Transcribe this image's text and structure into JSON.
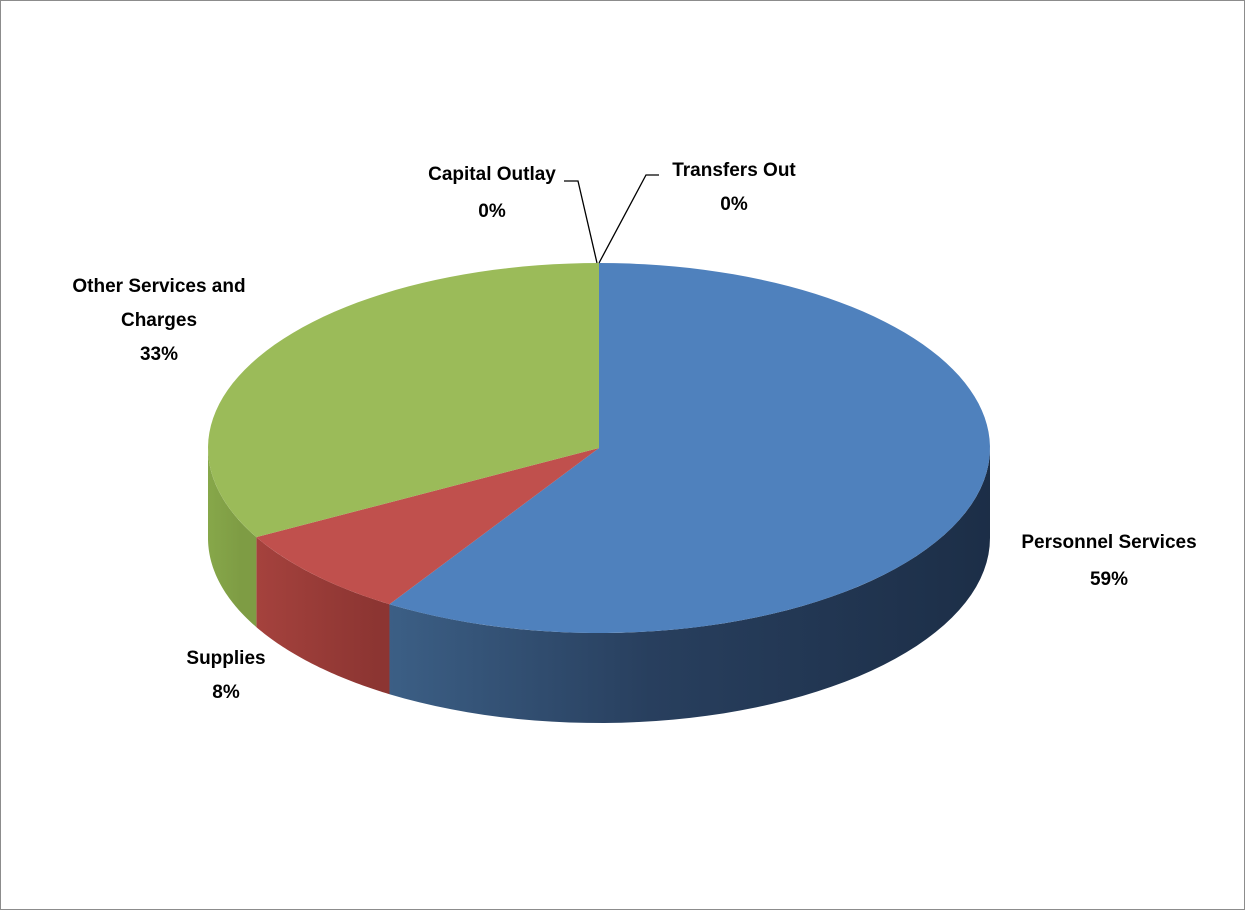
{
  "chart_data": {
    "type": "pie",
    "style": "3d",
    "title": "",
    "slices": [
      {
        "name": "Personnel Services",
        "value": 59,
        "label": "59%",
        "color": "#4F81BD"
      },
      {
        "name": "Supplies",
        "value": 8,
        "label": "8%",
        "color": "#C0504D"
      },
      {
        "name": "Other Services and Charges",
        "value": 33,
        "label": "33%",
        "color": "#9BBB59"
      },
      {
        "name": "Capital Outlay",
        "value": 0,
        "label": "0%",
        "color": "#8064A2"
      },
      {
        "name": "Transfers Out",
        "value": 0,
        "label": "0%",
        "color": "#4BACC6"
      }
    ],
    "legend": "none",
    "data_labels": "category name and percentage"
  }
}
